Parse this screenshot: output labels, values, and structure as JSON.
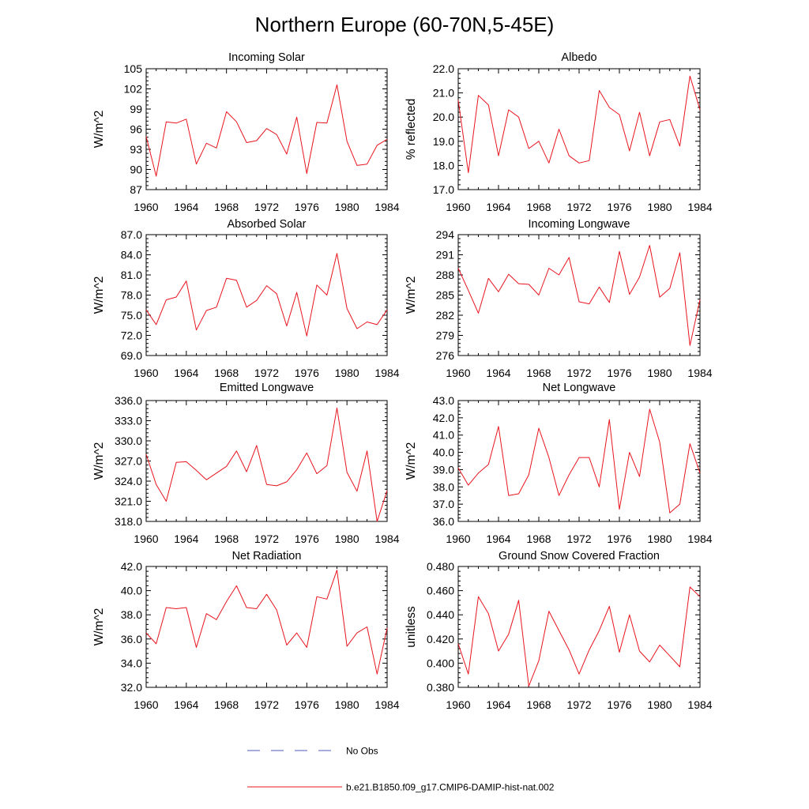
{
  "figure": {
    "title": "Northern Europe (60-70N,5-45E)",
    "legend": [
      {
        "label": "No Obs",
        "color": "#4a5bb8",
        "style": "dashed"
      },
      {
        "label": "b.e21.B1850.f09_g17.CMIP6-DAMIP-hist-nat.002",
        "color": "#e8141e",
        "style": "solid"
      }
    ],
    "line_color": "#e8141e"
  },
  "chart_data": [
    {
      "type": "line",
      "title": "Incoming Solar",
      "ylabel": "W/m^2",
      "ylim": [
        87,
        105
      ],
      "yticks": [
        87,
        90,
        93,
        96,
        99,
        102,
        105
      ],
      "yticklabels": [
        "87",
        "90",
        "93",
        "96",
        "99",
        "102",
        "105"
      ],
      "xlim": [
        1960,
        1984
      ],
      "xticks": [
        1960,
        1964,
        1968,
        1972,
        1976,
        1980,
        1984
      ],
      "xticklabels": [
        "1960",
        "1964",
        "1968",
        "1972",
        "1976",
        "1980",
        "1984"
      ],
      "series": [
        {
          "x": [
            1960,
            1961,
            1962,
            1963,
            1964,
            1965,
            1966,
            1967,
            1968,
            1969,
            1970,
            1971,
            1972,
            1973,
            1974,
            1975,
            1976,
            1977,
            1978,
            1979,
            1980,
            1981,
            1982,
            1983,
            1984
          ],
          "values": [
            94.9,
            89.0,
            97.1,
            96.9,
            97.5,
            90.8,
            93.9,
            93.2,
            98.6,
            97.1,
            94.0,
            94.3,
            96.1,
            95.2,
            92.3,
            97.8,
            89.4,
            97.0,
            96.9,
            102.6,
            94.2,
            90.6,
            90.8,
            93.6,
            94.5
          ]
        }
      ]
    },
    {
      "type": "line",
      "title": "Albedo",
      "ylabel": "% reflected",
      "ylim": [
        17.0,
        22.0
      ],
      "yticks": [
        17,
        18,
        19,
        20,
        21,
        22
      ],
      "yticklabels": [
        "17.0",
        "18.0",
        "19.0",
        "20.0",
        "21.0",
        "22.0"
      ],
      "xlim": [
        1960,
        1984
      ],
      "xticks": [
        1960,
        1964,
        1968,
        1972,
        1976,
        1980,
        1984
      ],
      "xticklabels": [
        "1960",
        "1964",
        "1968",
        "1972",
        "1976",
        "1980",
        "1984"
      ],
      "series": [
        {
          "x": [
            1960,
            1961,
            1962,
            1963,
            1964,
            1965,
            1966,
            1967,
            1968,
            1969,
            1970,
            1971,
            1972,
            1973,
            1974,
            1975,
            1976,
            1977,
            1978,
            1979,
            1980,
            1981,
            1982,
            1983,
            1984
          ],
          "values": [
            20.7,
            17.7,
            20.9,
            20.5,
            18.4,
            20.3,
            20.0,
            18.7,
            19.0,
            18.1,
            19.5,
            18.4,
            18.1,
            18.2,
            21.1,
            20.4,
            20.1,
            18.6,
            20.2,
            18.4,
            19.8,
            19.9,
            18.8,
            21.7,
            20.3
          ]
        }
      ]
    },
    {
      "type": "line",
      "title": "Absorbed Solar",
      "ylabel": "W/m^2",
      "ylim": [
        69.0,
        87.0
      ],
      "yticks": [
        69,
        72,
        75,
        78,
        81,
        84,
        87
      ],
      "yticklabels": [
        "69.0",
        "72.0",
        "75.0",
        "78.0",
        "81.0",
        "84.0",
        "87.0"
      ],
      "xlim": [
        1960,
        1984
      ],
      "xticks": [
        1960,
        1964,
        1968,
        1972,
        1976,
        1980,
        1984
      ],
      "xticklabels": [
        "1960",
        "1964",
        "1968",
        "1972",
        "1976",
        "1980",
        "1984"
      ],
      "series": [
        {
          "x": [
            1960,
            1961,
            1962,
            1963,
            1964,
            1965,
            1966,
            1967,
            1968,
            1969,
            1970,
            1971,
            1972,
            1973,
            1974,
            1975,
            1976,
            1977,
            1978,
            1979,
            1980,
            1981,
            1982,
            1983,
            1984
          ],
          "values": [
            75.8,
            73.6,
            77.3,
            77.7,
            80.1,
            72.8,
            75.7,
            76.2,
            80.5,
            80.2,
            76.2,
            77.2,
            79.4,
            78.2,
            73.4,
            78.4,
            71.9,
            79.5,
            78.0,
            84.2,
            76.0,
            73.0,
            74.0,
            73.6,
            75.8
          ]
        }
      ]
    },
    {
      "type": "line",
      "title": "Incoming Longwave",
      "ylabel": "W/m^2",
      "ylim": [
        276,
        294
      ],
      "yticks": [
        276,
        279,
        282,
        285,
        288,
        291,
        294
      ],
      "yticklabels": [
        "276",
        "279",
        "282",
        "285",
        "288",
        "291",
        "294"
      ],
      "xlim": [
        1960,
        1984
      ],
      "xticks": [
        1960,
        1964,
        1968,
        1972,
        1976,
        1980,
        1984
      ],
      "xticklabels": [
        "1960",
        "1964",
        "1968",
        "1972",
        "1976",
        "1980",
        "1984"
      ],
      "series": [
        {
          "x": [
            1960,
            1961,
            1962,
            1963,
            1964,
            1965,
            1966,
            1967,
            1968,
            1969,
            1970,
            1971,
            1972,
            1973,
            1974,
            1975,
            1976,
            1977,
            1978,
            1979,
            1980,
            1981,
            1982,
            1983,
            1984
          ],
          "values": [
            289.0,
            285.7,
            282.3,
            287.5,
            285.5,
            288.1,
            286.7,
            286.6,
            285.0,
            289.0,
            288.0,
            290.6,
            284.0,
            283.7,
            286.2,
            283.9,
            291.5,
            285.1,
            287.7,
            292.4,
            284.7,
            286.0,
            291.3,
            277.5,
            284.3
          ]
        }
      ]
    },
    {
      "type": "line",
      "title": "Emitted Longwave",
      "ylabel": "W/m^2",
      "ylim": [
        318.0,
        336.0
      ],
      "yticks": [
        318,
        321,
        324,
        327,
        330,
        333,
        336
      ],
      "yticklabels": [
        "318.0",
        "321.0",
        "324.0",
        "327.0",
        "330.0",
        "333.0",
        "336.0"
      ],
      "xlim": [
        1960,
        1984
      ],
      "xticks": [
        1960,
        1964,
        1968,
        1972,
        1976,
        1980,
        1984
      ],
      "xticklabels": [
        "1960",
        "1964",
        "1968",
        "1972",
        "1976",
        "1980",
        "1984"
      ],
      "series": [
        {
          "x": [
            1960,
            1961,
            1962,
            1963,
            1964,
            1965,
            1966,
            1967,
            1968,
            1969,
            1970,
            1971,
            1972,
            1973,
            1974,
            1975,
            1976,
            1977,
            1978,
            1979,
            1980,
            1981,
            1982,
            1983,
            1984
          ],
          "values": [
            328.0,
            323.5,
            321.0,
            326.8,
            326.9,
            325.6,
            324.2,
            325.2,
            326.2,
            328.5,
            325.4,
            329.3,
            323.5,
            323.3,
            323.9,
            325.7,
            328.2,
            325.1,
            326.3,
            334.9,
            325.3,
            322.5,
            328.5,
            318.0,
            322.6
          ]
        }
      ]
    },
    {
      "type": "line",
      "title": "Net Longwave",
      "ylabel": "W/m^2",
      "ylim": [
        36.0,
        43.0
      ],
      "yticks": [
        36,
        37,
        38,
        39,
        40,
        41,
        42,
        43
      ],
      "yticklabels": [
        "36.0",
        "37.0",
        "38.0",
        "39.0",
        "40.0",
        "41.0",
        "42.0",
        "43.0"
      ],
      "xlim": [
        1960,
        1984
      ],
      "xticks": [
        1960,
        1964,
        1968,
        1972,
        1976,
        1980,
        1984
      ],
      "xticklabels": [
        "1960",
        "1964",
        "1968",
        "1972",
        "1976",
        "1980",
        "1984"
      ],
      "series": [
        {
          "x": [
            1960,
            1961,
            1962,
            1963,
            1964,
            1965,
            1966,
            1967,
            1968,
            1969,
            1970,
            1971,
            1972,
            1973,
            1974,
            1975,
            1976,
            1977,
            1978,
            1979,
            1980,
            1981,
            1982,
            1983,
            1984
          ],
          "values": [
            39.1,
            38.1,
            38.8,
            39.3,
            41.5,
            37.5,
            37.6,
            38.7,
            41.4,
            39.7,
            37.5,
            38.7,
            39.7,
            39.7,
            38.0,
            41.9,
            36.7,
            40.0,
            38.6,
            42.5,
            40.6,
            36.5,
            37.0,
            40.5,
            38.8
          ]
        }
      ]
    },
    {
      "type": "line",
      "title": "Net Radiation",
      "ylabel": "W/m^2",
      "ylim": [
        32.0,
        42.0
      ],
      "yticks": [
        32,
        34,
        36,
        38,
        40,
        42
      ],
      "yticklabels": [
        "32.0",
        "34.0",
        "36.0",
        "38.0",
        "40.0",
        "42.0"
      ],
      "xlim": [
        1960,
        1984
      ],
      "xticks": [
        1960,
        1964,
        1968,
        1972,
        1976,
        1980,
        1984
      ],
      "xticklabels": [
        "1960",
        "1964",
        "1968",
        "1972",
        "1976",
        "1980",
        "1984"
      ],
      "series": [
        {
          "x": [
            1960,
            1961,
            1962,
            1963,
            1964,
            1965,
            1966,
            1967,
            1968,
            1969,
            1970,
            1971,
            1972,
            1973,
            1974,
            1975,
            1976,
            1977,
            1978,
            1979,
            1980,
            1981,
            1982,
            1983,
            1984
          ],
          "values": [
            36.5,
            35.6,
            38.6,
            38.5,
            38.6,
            35.3,
            38.1,
            37.6,
            39.1,
            40.4,
            38.6,
            38.5,
            39.7,
            38.4,
            35.5,
            36.5,
            35.3,
            39.5,
            39.3,
            41.7,
            35.4,
            36.5,
            37.0,
            33.1,
            36.9
          ]
        }
      ]
    },
    {
      "type": "line",
      "title": "Ground Snow Covered Fraction",
      "ylabel": "unitless",
      "ylim": [
        0.38,
        0.48
      ],
      "yticks": [
        0.38,
        0.4,
        0.42,
        0.44,
        0.46,
        0.48
      ],
      "yticklabels": [
        "0.380",
        "0.400",
        "0.420",
        "0.440",
        "0.460",
        "0.480"
      ],
      "xlim": [
        1960,
        1984
      ],
      "xticks": [
        1960,
        1964,
        1968,
        1972,
        1976,
        1980,
        1984
      ],
      "xticklabels": [
        "1960",
        "1964",
        "1968",
        "1972",
        "1976",
        "1980",
        "1984"
      ],
      "series": [
        {
          "x": [
            1960,
            1961,
            1962,
            1963,
            1964,
            1965,
            1966,
            1967,
            1968,
            1969,
            1970,
            1971,
            1972,
            1973,
            1974,
            1975,
            1976,
            1977,
            1978,
            1979,
            1980,
            1981,
            1982,
            1983,
            1984
          ],
          "values": [
            0.416,
            0.391,
            0.455,
            0.441,
            0.41,
            0.424,
            0.452,
            0.381,
            0.402,
            0.443,
            0.427,
            0.411,
            0.391,
            0.411,
            0.427,
            0.447,
            0.409,
            0.44,
            0.41,
            0.401,
            0.415,
            0.406,
            0.397,
            0.463,
            0.455
          ]
        }
      ]
    }
  ]
}
